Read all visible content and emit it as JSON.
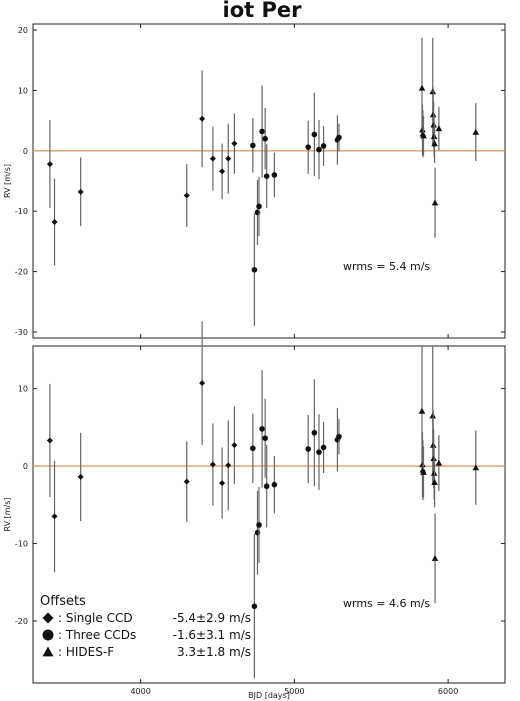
{
  "chart_data": {
    "title": "iot Per",
    "type": "scatter",
    "xlabel": "BJD [days]",
    "xticks": [
      4000,
      5000,
      6000
    ],
    "xlim": [
      3300,
      6370
    ],
    "reference_line_y": 0,
    "reference_line_color": "#d8a070",
    "legend": {
      "heading": "Offsets",
      "placement": "bottom-left",
      "entries": [
        {
          "marker": "diamond",
          "label": ": Single CCD",
          "value": "-5.4±2.9 m/s"
        },
        {
          "marker": "circle",
          "label": ": Three CCDs",
          "value": "-1.6±3.1 m/s"
        },
        {
          "marker": "triangle",
          "label": ": HIDES-F",
          "value": "3.3±1.8 m/s"
        }
      ]
    },
    "panels": [
      {
        "id": "top",
        "ylabel": "RV [m/s]",
        "ylim": [
          -31,
          21
        ],
        "yticks": [
          20,
          10,
          0,
          -10,
          -20,
          -30
        ],
        "annotation": "wrms = 5.4 m/s",
        "series": [
          {
            "marker": "diamond",
            "points": [
              {
                "x": 3410,
                "y": -2.2,
                "err": 7.3
              },
              {
                "x": 3440,
                "y": -11.8,
                "err": 7.2
              },
              {
                "x": 3610,
                "y": -6.8,
                "err": 5.7
              },
              {
                "x": 4300,
                "y": -7.4,
                "err": 5.2
              },
              {
                "x": 4400,
                "y": 5.3,
                "err": 8.0
              },
              {
                "x": 4470,
                "y": -1.3,
                "err": 5.3
              },
              {
                "x": 4530,
                "y": -3.4,
                "err": 4.6
              },
              {
                "x": 4570,
                "y": -1.3,
                "err": 5.8
              },
              {
                "x": 4610,
                "y": 1.2,
                "err": 5.0
              }
            ]
          },
          {
            "marker": "circle",
            "points": [
              {
                "x": 4730,
                "y": 0.9,
                "err": 4.5
              },
              {
                "x": 4740,
                "y": -19.7,
                "err": 9.3
              },
              {
                "x": 4760,
                "y": -10.2,
                "err": 5.4
              },
              {
                "x": 4770,
                "y": -9.2,
                "err": 4.9
              },
              {
                "x": 4790,
                "y": 3.2,
                "err": 7.6
              },
              {
                "x": 4810,
                "y": 2.0,
                "err": 5.1
              },
              {
                "x": 4820,
                "y": -4.2,
                "err": 5.3
              },
              {
                "x": 4870,
                "y": -4.0,
                "err": 3.7
              },
              {
                "x": 5090,
                "y": 0.6,
                "err": 4.4
              },
              {
                "x": 5130,
                "y": 2.7,
                "err": 6.9
              },
              {
                "x": 5160,
                "y": 0.2,
                "err": 4.9
              },
              {
                "x": 5190,
                "y": 0.8,
                "err": 3.3
              },
              {
                "x": 5280,
                "y": 1.8,
                "err": 4.1
              },
              {
                "x": 5290,
                "y": 2.2,
                "err": 2.3
              }
            ]
          },
          {
            "marker": "triangle",
            "points": [
              {
                "x": 5830,
                "y": 10.4,
                "err": 8.3
              },
              {
                "x": 5833,
                "y": 3.5,
                "err": 4.2
              },
              {
                "x": 5836,
                "y": 2.8,
                "err": 3.9
              },
              {
                "x": 5840,
                "y": 2.5,
                "err": 3.3
              },
              {
                "x": 5900,
                "y": 9.8,
                "err": 8.9
              },
              {
                "x": 5903,
                "y": 6.0,
                "err": 4.5
              },
              {
                "x": 5906,
                "y": 4.3,
                "err": 3.8
              },
              {
                "x": 5909,
                "y": 2.4,
                "err": 3.4
              },
              {
                "x": 5912,
                "y": 1.2,
                "err": 3.2
              },
              {
                "x": 5915,
                "y": -8.6,
                "err": 5.8
              },
              {
                "x": 5940,
                "y": 3.7,
                "err": 3.6
              },
              {
                "x": 6180,
                "y": 3.1,
                "err": 4.8
              }
            ]
          }
        ]
      },
      {
        "id": "bottom",
        "ylabel": "RV [m/s]",
        "ylim": [
          -28,
          15.5
        ],
        "yticks": [
          10,
          0,
          -10,
          -20
        ],
        "annotation": "wrms = 4.6 m/s",
        "series": [
          {
            "marker": "diamond",
            "points": [
              {
                "x": 3410,
                "y": 3.3,
                "err": 7.3
              },
              {
                "x": 3440,
                "y": -6.5,
                "err": 7.2
              },
              {
                "x": 3610,
                "y": -1.4,
                "err": 5.7
              },
              {
                "x": 4300,
                "y": -2.0,
                "err": 5.2
              },
              {
                "x": 4400,
                "y": 10.7,
                "err": 8.0
              },
              {
                "x": 4470,
                "y": 0.2,
                "err": 5.3
              },
              {
                "x": 4530,
                "y": -2.2,
                "err": 4.6
              },
              {
                "x": 4570,
                "y": 0.1,
                "err": 5.8
              },
              {
                "x": 4610,
                "y": 2.7,
                "err": 5.0
              }
            ]
          },
          {
            "marker": "circle",
            "points": [
              {
                "x": 4730,
                "y": 2.3,
                "err": 4.5
              },
              {
                "x": 4740,
                "y": -18.1,
                "err": 9.3
              },
              {
                "x": 4760,
                "y": -8.6,
                "err": 5.4
              },
              {
                "x": 4770,
                "y": -7.6,
                "err": 4.9
              },
              {
                "x": 4790,
                "y": 4.8,
                "err": 7.6
              },
              {
                "x": 4810,
                "y": 3.6,
                "err": 5.1
              },
              {
                "x": 4820,
                "y": -2.6,
                "err": 5.3
              },
              {
                "x": 4870,
                "y": -2.4,
                "err": 3.7
              },
              {
                "x": 5090,
                "y": 2.2,
                "err": 4.4
              },
              {
                "x": 5130,
                "y": 4.3,
                "err": 6.9
              },
              {
                "x": 5160,
                "y": 1.8,
                "err": 4.9
              },
              {
                "x": 5190,
                "y": 2.4,
                "err": 3.3
              },
              {
                "x": 5280,
                "y": 3.4,
                "err": 4.1
              },
              {
                "x": 5290,
                "y": 3.8,
                "err": 2.3
              }
            ]
          },
          {
            "marker": "triangle",
            "points": [
              {
                "x": 5830,
                "y": 7.1,
                "err": 8.3
              },
              {
                "x": 5833,
                "y": 0.2,
                "err": 4.2
              },
              {
                "x": 5836,
                "y": -0.5,
                "err": 3.9
              },
              {
                "x": 5840,
                "y": -0.8,
                "err": 3.3
              },
              {
                "x": 5900,
                "y": 6.5,
                "err": 8.9
              },
              {
                "x": 5903,
                "y": 2.7,
                "err": 4.5
              },
              {
                "x": 5906,
                "y": 1.0,
                "err": 3.8
              },
              {
                "x": 5909,
                "y": -0.9,
                "err": 3.4
              },
              {
                "x": 5912,
                "y": -2.1,
                "err": 3.2
              },
              {
                "x": 5915,
                "y": -11.9,
                "err": 5.8
              },
              {
                "x": 5940,
                "y": 0.4,
                "err": 3.6
              },
              {
                "x": 6180,
                "y": -0.2,
                "err": 4.8
              }
            ]
          }
        ]
      }
    ]
  }
}
